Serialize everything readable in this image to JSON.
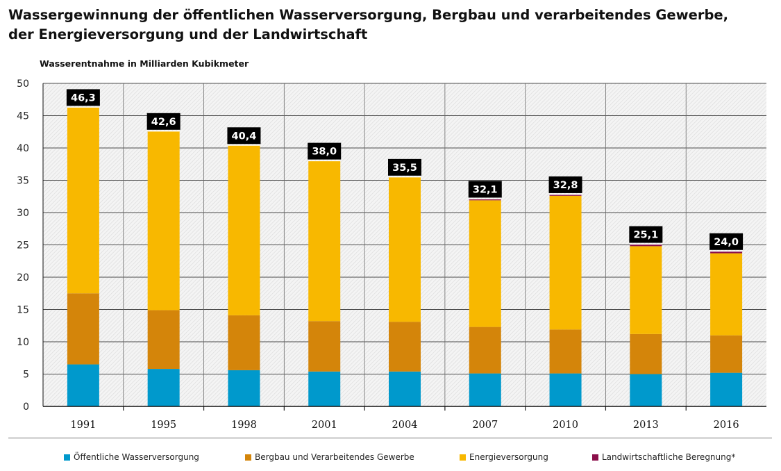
{
  "page": {
    "title_line1": "Wassergewinnung der öffentlichen Wasserversorgung, Bergbau und verarbeitendes Gewerbe,",
    "title_line2": "der Energieversorgung und der Landwirtschaft"
  },
  "chart_data": {
    "type": "bar",
    "stacked": true,
    "title": "Wassergewinnung der öffentlichen Wasserversorgung, Bergbau und verarbeitendes Gewerbe, der Energieversorgung und der Landwirtschaft",
    "ylabel": "Wasserentnahme in Milliarden Kubikmeter",
    "xlabel": "",
    "ylim": [
      0,
      50
    ],
    "yticks": [
      0,
      5,
      10,
      15,
      20,
      25,
      30,
      35,
      40,
      45,
      50
    ],
    "grid": true,
    "legend_position": "bottom",
    "categories": [
      "1991",
      "1995",
      "1998",
      "2001",
      "2004",
      "2007",
      "2010",
      "2013",
      "2016"
    ],
    "totals": [
      "46,3",
      "42,6",
      "40,4",
      "38,0",
      "35,5",
      "32,1",
      "32,8",
      "25,1",
      "24,0"
    ],
    "series": [
      {
        "name": "Öffentliche Wasserversorgung",
        "color": "#0099cc",
        "values": [
          6.5,
          5.8,
          5.6,
          5.4,
          5.4,
          5.1,
          5.1,
          5.0,
          5.2
        ]
      },
      {
        "name": "Bergbau und Verarbeitendes Gewerbe",
        "color": "#d4850a",
        "values": [
          11.0,
          9.1,
          8.5,
          7.8,
          7.7,
          7.2,
          6.8,
          6.2,
          5.8
        ]
      },
      {
        "name": "Energieversorgung",
        "color": "#f8b800",
        "values": [
          28.8,
          27.7,
          26.3,
          24.8,
          22.4,
          19.6,
          20.7,
          13.6,
          12.7
        ]
      },
      {
        "name": "Landwirtschaftliche Beregnung*",
        "color": "#8b0f4a",
        "values": [
          0.0,
          0.0,
          0.0,
          0.0,
          0.0,
          0.2,
          0.2,
          0.3,
          0.3
        ]
      }
    ]
  }
}
